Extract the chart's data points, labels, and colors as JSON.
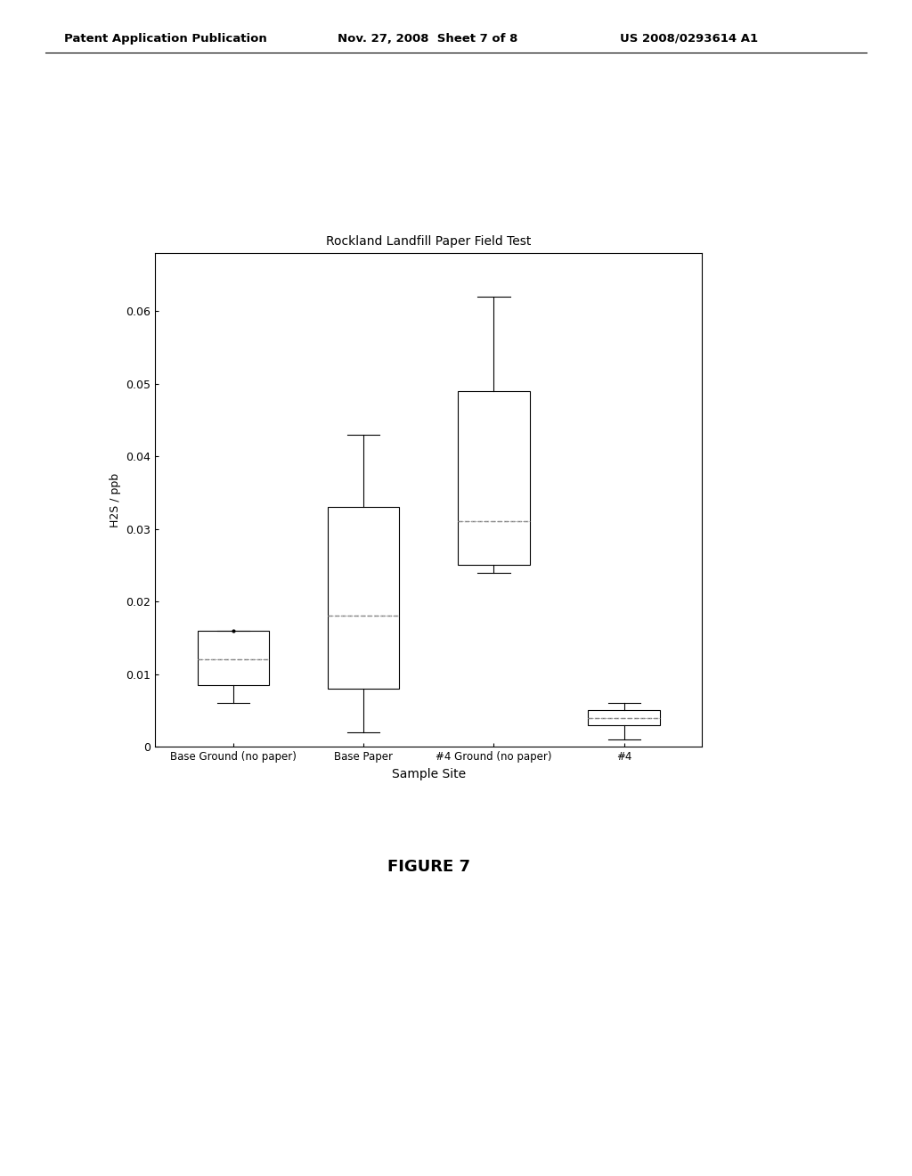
{
  "title": "Rockland Landfill Paper Field Test",
  "xlabel": "Sample Site",
  "ylabel": "H2S / ppb",
  "categories": [
    "Base Ground (no paper)",
    "Base Paper",
    "#4 Ground (no paper)",
    "#4"
  ],
  "ylim": [
    0,
    0.068
  ],
  "yticks": [
    0,
    0.01,
    0.02,
    0.03,
    0.04,
    0.05,
    0.06
  ],
  "boxes": [
    {
      "label": "Base Ground (no paper)",
      "whislo": 0.006,
      "q1": 0.0085,
      "med": 0.012,
      "mean": 0.012,
      "q3": 0.016,
      "whishi": 0.016,
      "fliers": [
        0.016
      ]
    },
    {
      "label": "Base Paper",
      "whislo": 0.002,
      "q1": 0.008,
      "med": 0.018,
      "mean": 0.018,
      "q3": 0.033,
      "whishi": 0.043,
      "fliers": []
    },
    {
      "label": "#4 Ground (no paper)",
      "whislo": 0.024,
      "q1": 0.025,
      "med": 0.031,
      "mean": 0.031,
      "q3": 0.049,
      "whishi": 0.062,
      "fliers": []
    },
    {
      "label": "#4",
      "whislo": 0.001,
      "q1": 0.003,
      "med": 0.004,
      "mean": 0.004,
      "q3": 0.005,
      "whishi": 0.006,
      "fliers": []
    }
  ],
  "box_color": "#ffffff",
  "line_color": "#000000",
  "median_color": "#777777",
  "mean_color": "#aaaaaa",
  "background_color": "#ffffff",
  "figure_caption": "FIGURE 7",
  "header_left": "Patent Application Publication",
  "header_center": "Nov. 27, 2008  Sheet 7 of 8",
  "header_right": "US 2008/0293614 A1"
}
